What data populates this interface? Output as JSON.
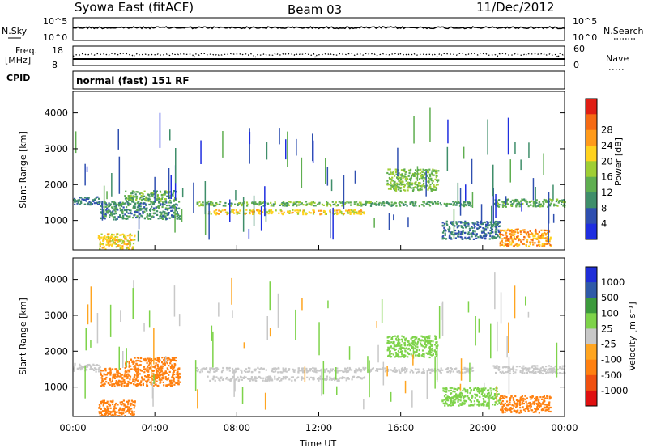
{
  "header": {
    "title": "Syowa East (fitACF)",
    "beam": "Beam 03",
    "date": "11/Dec/2012"
  },
  "strips": {
    "nsky_label": "N.Sky",
    "nsearch_label": "N.Search",
    "noise_top": "10^5",
    "noise_bottom": "10^0",
    "freq_label_1": "Freq.",
    "freq_label_2": "[MHz]",
    "freq_top": "18",
    "freq_bottom": "8",
    "nave_label": "Nave",
    "nave_top": "60",
    "nave_bottom": "0",
    "cpid_label": "CPID",
    "cpid_text": "normal (fast) 151 RF"
  },
  "chart_data": [
    {
      "type": "heatmap",
      "parameter": "Power",
      "ylabel": "Slant Range [km]",
      "xlabel": "",
      "yticks": [
        1000,
        2000,
        3000,
        4000
      ],
      "ylim": [
        180,
        4600
      ],
      "colorbar_label": "Power [dB]",
      "colorbar_ticks": [
        4,
        8,
        12,
        16,
        20,
        24,
        28
      ],
      "colorbar_colors": [
        "#1f2ee0",
        "#2f4fb0",
        "#3f8e6a",
        "#5fae50",
        "#9fce34",
        "#ffd21e",
        "#ff9a1a",
        "#f56a14",
        "#e01e14"
      ],
      "bands": [
        {
          "x_start_h": 0.0,
          "x_end_h": 1.3,
          "range_start_km": 1450,
          "range_end_km": 1680,
          "value": 8
        },
        {
          "x_start_h": 1.3,
          "x_end_h": 5.2,
          "range_start_km": 1050,
          "range_end_km": 1550,
          "value": 10
        },
        {
          "x_start_h": 2.5,
          "x_end_h": 5.0,
          "range_start_km": 1550,
          "range_end_km": 1850,
          "value": 14
        },
        {
          "x_start_h": 6.0,
          "x_end_h": 14.5,
          "range_start_km": 1430,
          "range_end_km": 1560,
          "value": 14
        },
        {
          "x_start_h": 6.5,
          "x_end_h": 14.2,
          "range_start_km": 1190,
          "range_end_km": 1320,
          "value": 22
        },
        {
          "x_start_h": 14.5,
          "x_end_h": 19.5,
          "range_start_km": 1420,
          "range_end_km": 1560,
          "value": 12
        },
        {
          "x_start_h": 15.3,
          "x_end_h": 17.8,
          "range_start_km": 1850,
          "range_end_km": 2450,
          "value": 16
        },
        {
          "x_start_h": 18.0,
          "x_end_h": 20.8,
          "range_start_km": 500,
          "range_end_km": 1000,
          "value": 8
        },
        {
          "x_start_h": 20.8,
          "x_end_h": 23.3,
          "range_start_km": 300,
          "range_end_km": 780,
          "value": 26
        },
        {
          "x_start_h": 20.5,
          "x_end_h": 24.0,
          "range_start_km": 1400,
          "range_end_km": 1620,
          "value": 14
        },
        {
          "x_start_h": 1.2,
          "x_end_h": 3.0,
          "range_start_km": 220,
          "range_end_km": 650,
          "value": 22
        }
      ]
    },
    {
      "type": "heatmap",
      "parameter": "Velocity",
      "xlabel": "Time UT",
      "ylabel": "Slant Range [km]",
      "xticks": [
        "00:00",
        "04:00",
        "08:00",
        "12:00",
        "16:00",
        "20:00",
        "00:00"
      ],
      "xlim_hours": [
        0,
        24
      ],
      "yticks": [
        1000,
        2000,
        3000,
        4000
      ],
      "ylim": [
        180,
        4600
      ],
      "colorbar_label": "Velocity [m s⁻¹]",
      "colorbar_ticks": [
        1000,
        500,
        100,
        25,
        -25,
        -100,
        -500,
        -1000
      ],
      "colorbar_colors": [
        "#1f2ed8",
        "#2f5aa8",
        "#3c9a3c",
        "#7ed34a",
        "#c8c8c8",
        "#ffa520",
        "#ff8010",
        "#f05010",
        "#e01010"
      ],
      "bands": [
        {
          "x_start_h": 0.0,
          "x_end_h": 1.3,
          "range_start_km": 1450,
          "range_end_km": 1680,
          "value": 0
        },
        {
          "x_start_h": 1.3,
          "x_end_h": 5.2,
          "range_start_km": 1050,
          "range_end_km": 1550,
          "value": -120
        },
        {
          "x_start_h": 2.5,
          "x_end_h": 5.0,
          "range_start_km": 1550,
          "range_end_km": 1850,
          "value": -120
        },
        {
          "x_start_h": 6.0,
          "x_end_h": 14.5,
          "range_start_km": 1430,
          "range_end_km": 1560,
          "value": 0
        },
        {
          "x_start_h": 6.5,
          "x_end_h": 14.2,
          "range_start_km": 1190,
          "range_end_km": 1320,
          "value": 0
        },
        {
          "x_start_h": 14.5,
          "x_end_h": 19.5,
          "range_start_km": 1420,
          "range_end_km": 1560,
          "value": 0
        },
        {
          "x_start_h": 15.3,
          "x_end_h": 17.8,
          "range_start_km": 1850,
          "range_end_km": 2450,
          "value": 80
        },
        {
          "x_start_h": 18.0,
          "x_end_h": 20.8,
          "range_start_km": 500,
          "range_end_km": 1000,
          "value": 80
        },
        {
          "x_start_h": 20.8,
          "x_end_h": 23.3,
          "range_start_km": 300,
          "range_end_km": 780,
          "value": -200
        },
        {
          "x_start_h": 20.5,
          "x_end_h": 24.0,
          "range_start_km": 1400,
          "range_end_km": 1620,
          "value": 0
        },
        {
          "x_start_h": 1.2,
          "x_end_h": 3.0,
          "range_start_km": 220,
          "range_end_km": 650,
          "value": -120
        }
      ]
    }
  ]
}
